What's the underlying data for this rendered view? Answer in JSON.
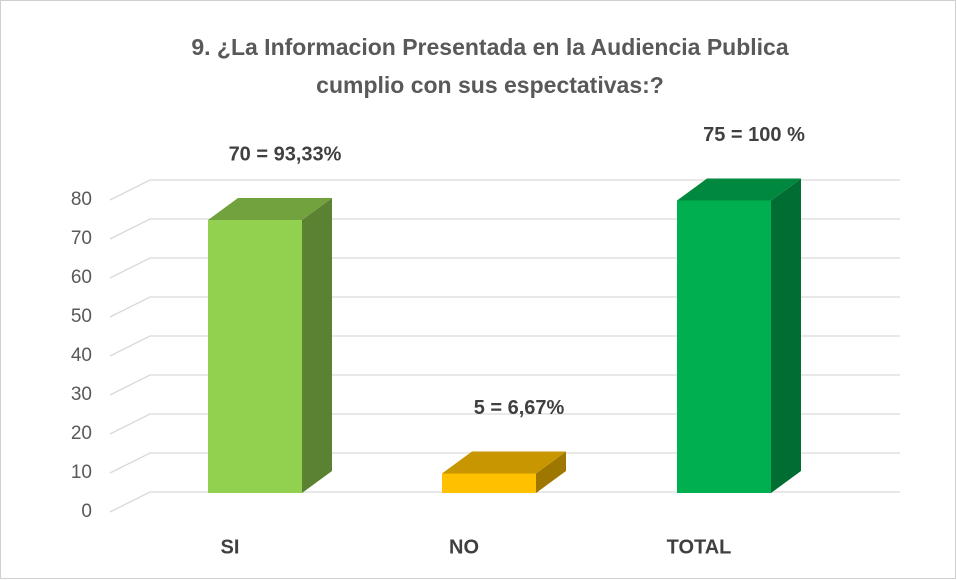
{
  "chart_data": {
    "type": "bar3d",
    "title": [
      "9.  ¿La Informacion Presentada en la Audiencia Publica",
      "cumplio con sus espectativas:?"
    ],
    "categories": [
      "SI",
      "NO",
      "TOTAL"
    ],
    "values": [
      70,
      5,
      75
    ],
    "value_labels": [
      "70 = 93,33%",
      "5 = 6,67%",
      "75  = 100 %"
    ],
    "colors": [
      "#92d050",
      "#ffc000",
      "#00b050"
    ],
    "ylim": [
      0,
      80
    ],
    "yticks": [
      0,
      10,
      20,
      30,
      40,
      50,
      60,
      70,
      80
    ],
    "grid": true
  }
}
